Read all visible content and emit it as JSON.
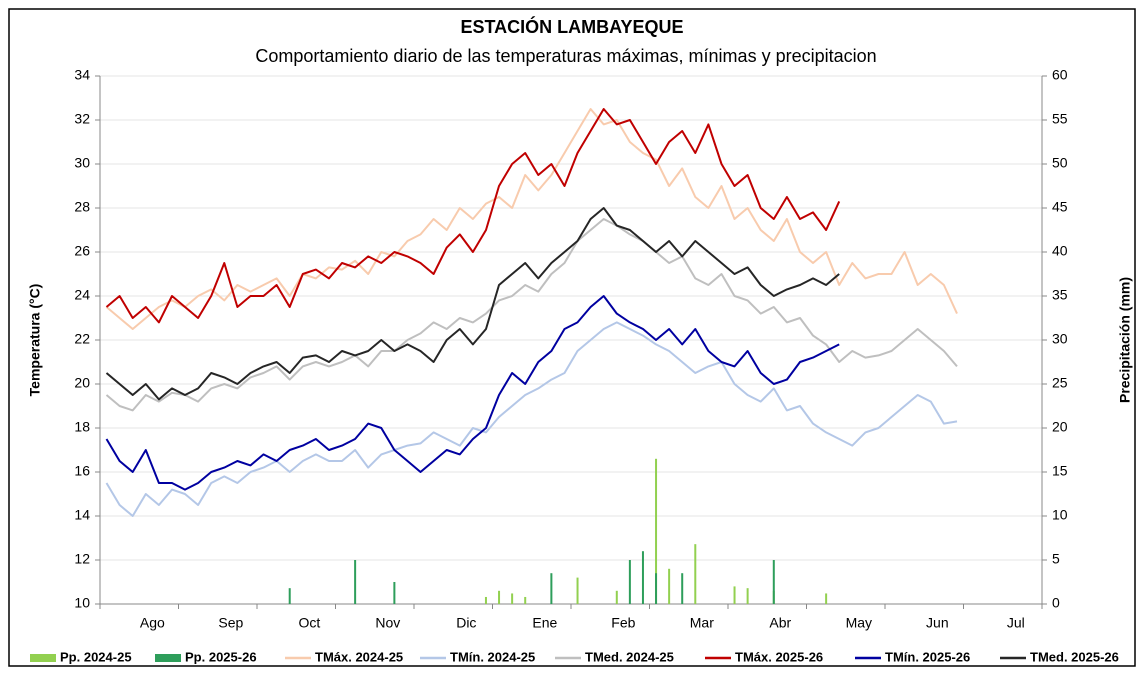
{
  "chart_data": {
    "type": "line",
    "title": "ESTACIÓN LAMBAYEQUE",
    "subtitle": "Comportamiento diario de las temperaturas máximas, mínimas y precipitacion",
    "y_label": "Temperatura (°C)",
    "y2_label": "Precipitación (mm)",
    "categories": [
      null,
      null,
      null,
      "Ago",
      null,
      null,
      null,
      null,
      null,
      "Sep",
      null,
      null,
      null,
      null,
      null,
      "Oct",
      null,
      null,
      null,
      null,
      null,
      "Nov",
      null,
      null,
      null,
      null,
      null,
      "Dic",
      null,
      null,
      null,
      null,
      null,
      "Ene",
      null,
      null,
      null,
      null,
      null,
      "Feb",
      null,
      null,
      null,
      null,
      null,
      "Mar",
      null,
      null,
      null,
      null,
      null,
      "Abr",
      null,
      null,
      null,
      null,
      null,
      "May",
      null,
      null,
      null,
      null,
      null,
      "Jun",
      null,
      null,
      null,
      null,
      null,
      "Jul",
      null,
      null
    ],
    "ylim": [
      10,
      34
    ],
    "yticks": [
      10,
      12,
      14,
      16,
      18,
      20,
      22,
      24,
      26,
      28,
      30,
      32,
      34
    ],
    "y2lim": [
      0,
      60
    ],
    "y2ticks": [
      0,
      5,
      10,
      15,
      20,
      25,
      30,
      35,
      40,
      45,
      50,
      55,
      60
    ],
    "grid": true,
    "series": [
      {
        "name": "Pp. 2024-25",
        "type": "bar",
        "axis": "y2",
        "color": "#92d050",
        "values": [
          null,
          null,
          null,
          null,
          null,
          null,
          null,
          null,
          null,
          null,
          null,
          null,
          null,
          null,
          null,
          null,
          null,
          null,
          null,
          null,
          null,
          null,
          null,
          null,
          null,
          null,
          null,
          null,
          null,
          0.8,
          1.5,
          1.2,
          0.8,
          null,
          null,
          null,
          3,
          null,
          null,
          1.5,
          null,
          null,
          16.5,
          4,
          null,
          6.8,
          null,
          null,
          2,
          1.8,
          null,
          1.5,
          null,
          null,
          null,
          1.2,
          null,
          null,
          null,
          null,
          null,
          null,
          null,
          null,
          null,
          null,
          null,
          null,
          null,
          null,
          null,
          null
        ]
      },
      {
        "name": "Pp. 2025-26",
        "type": "bar",
        "axis": "y2",
        "color": "#2e9e5b",
        "values": [
          null,
          null,
          null,
          null,
          null,
          null,
          null,
          null,
          null,
          null,
          null,
          null,
          null,
          null,
          1.8,
          null,
          null,
          null,
          null,
          5,
          null,
          null,
          2.5,
          null,
          null,
          null,
          null,
          null,
          null,
          null,
          null,
          null,
          null,
          null,
          3.5,
          null,
          null,
          null,
          null,
          null,
          5,
          6,
          3.5,
          null,
          3.5,
          null,
          null,
          null,
          null,
          null,
          null,
          5,
          null,
          null,
          null,
          null,
          null,
          null,
          null,
          null,
          null,
          null,
          null,
          null,
          null,
          null,
          null,
          null,
          null,
          null,
          null,
          null
        ]
      },
      {
        "name": "TMáx. 2024-25",
        "type": "line",
        "color": "#f8cbad",
        "values": [
          23.5,
          23,
          22.5,
          23,
          23.5,
          23.8,
          23.5,
          24,
          24.3,
          23.8,
          24.5,
          24.2,
          24.5,
          24.8,
          24,
          25,
          24.8,
          25.3,
          25.2,
          25.6,
          25,
          26,
          25.8,
          26.5,
          26.8,
          27.5,
          27,
          28,
          27.5,
          28.2,
          28.5,
          28,
          29.5,
          28.8,
          29.5,
          30.5,
          31.5,
          32.5,
          31.8,
          32,
          31,
          30.5,
          30.2,
          29,
          29.8,
          28.5,
          28,
          29,
          27.5,
          28,
          27,
          26.5,
          27.5,
          26,
          25.5,
          26,
          24.5,
          25.5,
          24.8,
          25,
          25,
          26,
          24.5,
          25,
          24.5,
          23.2,
          null,
          null,
          null,
          null,
          null,
          null
        ]
      },
      {
        "name": "TMín. 2024-25",
        "type": "line",
        "color": "#b4c7e7",
        "values": [
          15.5,
          14.5,
          14,
          15,
          14.5,
          15.2,
          15,
          14.5,
          15.5,
          15.8,
          15.5,
          16,
          16.2,
          16.5,
          16,
          16.5,
          16.8,
          16.5,
          16.5,
          17,
          16.2,
          16.8,
          17,
          17.2,
          17.3,
          17.8,
          17.5,
          17.2,
          18,
          17.8,
          18.5,
          19,
          19.5,
          19.8,
          20.2,
          20.5,
          21.5,
          22,
          22.5,
          22.8,
          22.5,
          22.2,
          21.8,
          21.5,
          21,
          20.5,
          20.8,
          21,
          20,
          19.5,
          19.2,
          19.8,
          18.8,
          19,
          18.2,
          17.8,
          17.5,
          17.2,
          17.8,
          18,
          18.5,
          19,
          19.5,
          19.2,
          18.2,
          18.3,
          null,
          null,
          null,
          null,
          null,
          null
        ]
      },
      {
        "name": "TMed. 2024-25",
        "type": "line",
        "color": "#bfbfbf",
        "values": [
          19.5,
          19,
          18.8,
          19.5,
          19.2,
          19.6,
          19.5,
          19.2,
          19.8,
          20,
          19.8,
          20.3,
          20.5,
          20.8,
          20.2,
          20.8,
          21,
          20.8,
          21,
          21.3,
          20.8,
          21.5,
          21.5,
          22,
          22.3,
          22.8,
          22.5,
          23,
          22.8,
          23.2,
          23.8,
          24,
          24.5,
          24.2,
          25,
          25.5,
          26.5,
          27,
          27.5,
          27.2,
          26.8,
          26.5,
          26,
          25.5,
          25.8,
          24.8,
          24.5,
          25,
          24,
          23.8,
          23.2,
          23.5,
          22.8,
          23,
          22.2,
          21.8,
          21,
          21.5,
          21.2,
          21.3,
          21.5,
          22,
          22.5,
          22,
          21.5,
          20.8,
          null,
          null,
          null,
          null,
          null,
          null
        ]
      },
      {
        "name": "TMáx. 2025-26",
        "type": "line",
        "color": "#c00000",
        "values": [
          23.5,
          24,
          23,
          23.5,
          22.8,
          24,
          23.5,
          23,
          24,
          25.5,
          23.5,
          24,
          24,
          24.5,
          23.5,
          25,
          25.2,
          24.8,
          25.5,
          25.3,
          25.8,
          25.5,
          26,
          25.8,
          25.5,
          25,
          26.2,
          26.8,
          26,
          27,
          29,
          30,
          30.5,
          29.5,
          30,
          29,
          30.5,
          31.5,
          32.5,
          31.8,
          32,
          31,
          30,
          31,
          31.5,
          30.5,
          31.8,
          30,
          29,
          29.5,
          28,
          27.5,
          28.5,
          27.5,
          27.8,
          27,
          28.3,
          null,
          null,
          null,
          null,
          null,
          null,
          null,
          null,
          null,
          null,
          null,
          null,
          null,
          null,
          null
        ]
      },
      {
        "name": "TMín. 2025-26",
        "type": "line",
        "color": "#0000a0",
        "values": [
          17.5,
          16.5,
          16,
          17,
          15.5,
          15.5,
          15.2,
          15.5,
          16,
          16.2,
          16.5,
          16.3,
          16.8,
          16.5,
          17,
          17.2,
          17.5,
          17,
          17.2,
          17.5,
          18.2,
          18,
          17,
          16.5,
          16,
          16.5,
          17,
          16.8,
          17.5,
          18,
          19.5,
          20.5,
          20,
          21,
          21.5,
          22.5,
          22.8,
          23.5,
          24,
          23.2,
          22.8,
          22.5,
          22,
          22.5,
          21.8,
          22.5,
          21.5,
          21,
          20.8,
          21.5,
          20.5,
          20,
          20.2,
          21,
          21.2,
          21.5,
          21.8,
          null,
          null,
          null,
          null,
          null,
          null,
          null,
          null,
          null,
          null,
          null,
          null,
          null,
          null,
          null
        ]
      },
      {
        "name": "TMed. 2025-26",
        "type": "line",
        "color": "#262626",
        "values": [
          20.5,
          20,
          19.5,
          20,
          19.3,
          19.8,
          19.5,
          19.8,
          20.5,
          20.3,
          20,
          20.5,
          20.8,
          21,
          20.5,
          21.2,
          21.3,
          21,
          21.5,
          21.3,
          21.5,
          22,
          21.5,
          21.8,
          21.5,
          21,
          22,
          22.5,
          21.8,
          22.5,
          24.5,
          25,
          25.5,
          24.8,
          25.5,
          26,
          26.5,
          27.5,
          28,
          27.2,
          27,
          26.5,
          26,
          26.5,
          25.8,
          26.5,
          26,
          25.5,
          25,
          25.3,
          24.5,
          24,
          24.3,
          24.5,
          24.8,
          24.5,
          25,
          null,
          null,
          null,
          null,
          null,
          null,
          null,
          null,
          null,
          null,
          null,
          null,
          null,
          null,
          null
        ]
      }
    ]
  }
}
